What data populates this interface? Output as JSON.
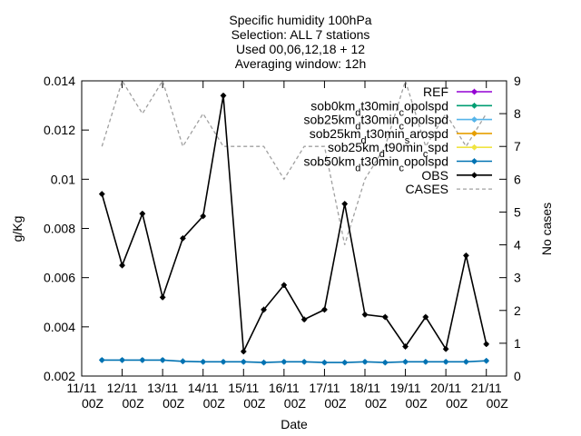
{
  "chart_data": {
    "type": "line",
    "title": [
      "Specific humidity 100hPa",
      "Selection: ALL       7 stations",
      "Used 00,06,12,18 + 12",
      "Averaging window: 12h"
    ],
    "xlabel": "Date",
    "ylabel": "g/Kg",
    "y2label": "No cases",
    "ylim": [
      0.002,
      0.014
    ],
    "y2lim": [
      0,
      9
    ],
    "yticks": [
      "0.002",
      "0.004",
      "0.006",
      "0.008",
      "0.01",
      "0.012",
      "0.014"
    ],
    "y2ticks": [
      "0",
      "1",
      "2",
      "3",
      "4",
      "5",
      "6",
      "7",
      "8",
      "9"
    ],
    "xticks": [
      {
        "line1": "11/11",
        "line2": "00Z"
      },
      {
        "line1": "12/11",
        "line2": "00Z"
      },
      {
        "line1": "13/11",
        "line2": "00Z"
      },
      {
        "line1": "14/11",
        "line2": "00Z"
      },
      {
        "line1": "15/11",
        "line2": "00Z"
      },
      {
        "line1": "16/11",
        "line2": "00Z"
      },
      {
        "line1": "17/11",
        "line2": "00Z"
      },
      {
        "line1": "18/11",
        "line2": "00Z"
      },
      {
        "line1": "19/11",
        "line2": "00Z"
      },
      {
        "line1": "20/11",
        "line2": "00Z"
      },
      {
        "line1": "21/11",
        "line2": "00Z"
      }
    ],
    "x_days": [
      0.5,
      1.0,
      1.5,
      2.0,
      2.5,
      3.0,
      3.5,
      4.0,
      4.5,
      5.0,
      5.5,
      6.0,
      6.5,
      7.0,
      7.5,
      8.0,
      8.5,
      9.0,
      9.5,
      10.0
    ],
    "legend_position": "top-right",
    "series": [
      {
        "name": "REF",
        "color": "#9400d3",
        "axis": "y1",
        "marker": "dot",
        "style": "solid",
        "values": []
      },
      {
        "name": "sob0km_dt30min_copolspd",
        "color": "#009e73",
        "axis": "y1",
        "marker": "dot",
        "style": "solid",
        "values": []
      },
      {
        "name": "sob25km_dt30min_copolspd",
        "color": "#56b4e9",
        "axis": "y1",
        "marker": "dot",
        "style": "solid",
        "values": []
      },
      {
        "name": "sob25km_dt30min_sarospd",
        "color": "#e69f00",
        "axis": "y1",
        "marker": "dot",
        "style": "solid",
        "values": []
      },
      {
        "name": "sob25km_dt90min_cpspd",
        "color": "#f0e442",
        "axis": "y1",
        "marker": "dot",
        "style": "solid",
        "values": []
      },
      {
        "name": "sob50km_dt30min_copolspd",
        "color": "#0072b2",
        "axis": "y1",
        "marker": "dot",
        "style": "solid",
        "values": [
          0.00265,
          0.00265,
          0.00265,
          0.00265,
          0.0026,
          0.00258,
          0.00258,
          0.00258,
          0.00255,
          0.00258,
          0.00258,
          0.00255,
          0.00255,
          0.00258,
          0.00255,
          0.00258,
          0.00258,
          0.00258,
          0.00258,
          0.00262
        ]
      },
      {
        "name": "OBS",
        "color": "#000000",
        "axis": "y1",
        "marker": "dot",
        "style": "solid",
        "values": [
          0.0094,
          0.0065,
          0.0086,
          0.0052,
          0.0076,
          0.0085,
          0.0134,
          0.003,
          0.0047,
          0.0057,
          0.0043,
          0.0047,
          0.009,
          0.0045,
          0.0044,
          0.0032,
          0.0044,
          0.0031,
          0.0069,
          0.0033
        ]
      },
      {
        "name": "CASES",
        "color": "#a0a0a0",
        "axis": "y2",
        "marker": "none",
        "style": "dashed",
        "values": [
          7,
          9,
          8,
          9,
          7,
          8,
          7,
          7,
          7,
          6,
          7,
          7,
          4,
          6,
          7,
          9,
          7,
          8,
          7,
          8
        ]
      }
    ],
    "legend_label_parts": [
      [
        "REF"
      ],
      [
        "sob0km",
        "dt30min",
        "copolspd"
      ],
      [
        "sob25km",
        "dt30min",
        "copolspd"
      ],
      [
        "sob25km",
        "dt30min",
        "sarospd"
      ],
      [
        "sob25km",
        "dt90min",
        "pspd"
      ],
      [
        "sob50km",
        "dt30min",
        "copolspd"
      ],
      [
        "OBS"
      ],
      [
        "CASES"
      ]
    ],
    "legend_label_subs": [
      [],
      [
        "d",
        "c"
      ],
      [
        "d",
        "c"
      ],
      [
        "d",
        "s"
      ],
      [
        "d",
        "c"
      ],
      [
        "d",
        "c"
      ],
      [],
      []
    ]
  }
}
